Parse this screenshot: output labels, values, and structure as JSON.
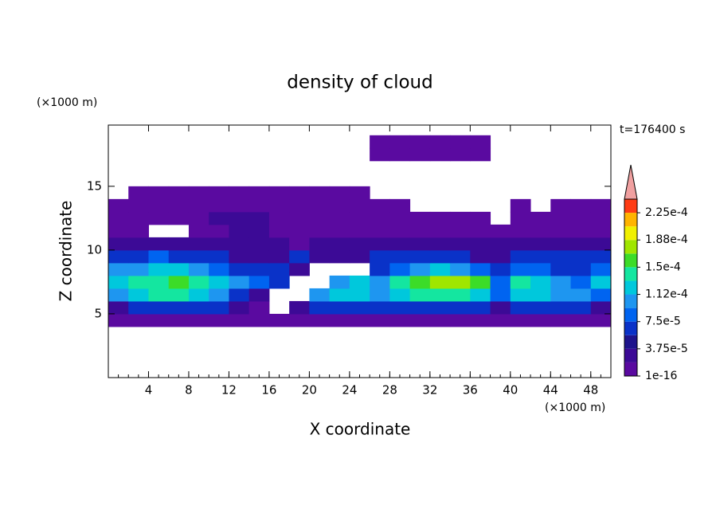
{
  "chart_data": {
    "type": "contour",
    "title": "density of cloud",
    "x_label": "X coordinate",
    "y_label": "Z coordinate",
    "x_unit_label": "(×1000 m)",
    "y_unit_label": "(×1000 m)",
    "time_label": "t=176400 s",
    "xlim": [
      0,
      50
    ],
    "ylim": [
      0,
      19.8
    ],
    "xticks": [
      4,
      8,
      12,
      16,
      20,
      24,
      28,
      32,
      36,
      40,
      44,
      48
    ],
    "yticks": [
      5,
      10,
      15
    ],
    "x": [
      1,
      3,
      5,
      7,
      9,
      11,
      13,
      15,
      17,
      19,
      21,
      23,
      25,
      27,
      29,
      31,
      33,
      35,
      37,
      39,
      41,
      43,
      45,
      47,
      49
    ],
    "z": [
      0.5,
      1.5,
      2.5,
      3.5,
      4.5,
      5.5,
      6.5,
      7.5,
      8.5,
      9.5,
      10.5,
      11.5,
      12.5,
      13.5,
      14.5,
      15.5,
      16.5,
      17.5,
      18.5,
      19.5
    ],
    "values": [
      [
        null,
        null,
        null,
        null,
        null,
        null,
        null,
        null,
        null,
        null,
        null,
        null,
        null,
        null,
        null,
        null,
        null,
        null,
        null,
        null,
        null,
        null,
        null,
        null,
        null
      ],
      [
        null,
        null,
        null,
        null,
        null,
        null,
        null,
        null,
        null,
        null,
        null,
        null,
        null,
        null,
        null,
        null,
        null,
        null,
        null,
        null,
        null,
        null,
        null,
        null,
        null
      ],
      [
        null,
        null,
        null,
        null,
        null,
        null,
        null,
        null,
        null,
        null,
        null,
        null,
        null,
        null,
        null,
        null,
        null,
        null,
        null,
        null,
        null,
        null,
        null,
        null,
        null
      ],
      [
        null,
        null,
        null,
        null,
        null,
        null,
        null,
        null,
        null,
        null,
        null,
        null,
        null,
        null,
        null,
        null,
        null,
        null,
        null,
        null,
        null,
        null,
        null,
        null,
        null
      ],
      [
        1e-05,
        1e-05,
        1e-05,
        1e-05,
        1e-05,
        1e-05,
        1e-05,
        1e-05,
        1e-05,
        1e-05,
        1e-05,
        1e-05,
        1e-05,
        1e-05,
        1e-05,
        1e-05,
        1e-05,
        1e-05,
        1e-05,
        1e-05,
        1e-05,
        1e-05,
        1e-05,
        1e-05,
        1e-05
      ],
      [
        3e-05,
        6e-05,
        6e-05,
        6e-05,
        6e-05,
        6e-05,
        3e-05,
        1e-05,
        null,
        3e-05,
        6e-05,
        6e-05,
        6e-05,
        6e-05,
        6e-05,
        6e-05,
        6e-05,
        6e-05,
        6e-05,
        3e-05,
        6e-05,
        6e-05,
        6e-05,
        6e-05,
        3e-05
      ],
      [
        0.000105,
        0.00012,
        0.00014,
        0.00014,
        0.00012,
        0.000105,
        6e-05,
        3e-05,
        null,
        null,
        0.000105,
        0.00012,
        0.00012,
        0.000105,
        0.00012,
        0.00014,
        0.00014,
        0.00014,
        0.00012,
        8.5e-05,
        0.00012,
        0.00012,
        0.000105,
        0.000105,
        8.5e-05
      ],
      [
        0.00012,
        0.00014,
        0.00014,
        0.00016,
        0.00014,
        0.00012,
        0.000105,
        8.5e-05,
        6e-05,
        null,
        null,
        0.000105,
        0.00012,
        0.000105,
        0.00014,
        0.00016,
        0.00018,
        0.00018,
        0.00016,
        8.5e-05,
        0.00014,
        0.00012,
        0.000105,
        8.5e-05,
        0.00012
      ],
      [
        0.000105,
        0.000105,
        0.00012,
        0.00012,
        0.000105,
        8.5e-05,
        6e-05,
        6e-05,
        6e-05,
        3e-05,
        null,
        null,
        null,
        6e-05,
        8.5e-05,
        0.000105,
        0.00012,
        0.000105,
        8.5e-05,
        6e-05,
        8.5e-05,
        8.5e-05,
        6e-05,
        6e-05,
        8.5e-05
      ],
      [
        6e-05,
        6e-05,
        8.5e-05,
        6e-05,
        6e-05,
        6e-05,
        3e-05,
        3e-05,
        3e-05,
        6e-05,
        3e-05,
        3e-05,
        3e-05,
        6e-05,
        6e-05,
        6e-05,
        6e-05,
        6e-05,
        3e-05,
        3e-05,
        6e-05,
        6e-05,
        6e-05,
        6e-05,
        6e-05
      ],
      [
        3e-05,
        3e-05,
        3e-05,
        3e-05,
        3e-05,
        3e-05,
        3e-05,
        3e-05,
        3e-05,
        1e-05,
        3e-05,
        3e-05,
        3e-05,
        3e-05,
        3e-05,
        3e-05,
        3e-05,
        3e-05,
        3e-05,
        3e-05,
        3e-05,
        3e-05,
        3e-05,
        3e-05,
        3e-05
      ],
      [
        1e-05,
        1e-05,
        null,
        null,
        1e-05,
        1e-05,
        3e-05,
        3e-05,
        1e-05,
        1e-05,
        1e-05,
        1e-05,
        1e-05,
        1e-05,
        1e-05,
        1e-05,
        1e-05,
        1e-05,
        1e-05,
        1e-05,
        1e-05,
        1e-05,
        1e-05,
        1e-05,
        1e-05
      ],
      [
        1e-05,
        1e-05,
        1e-05,
        1e-05,
        1e-05,
        3e-05,
        3e-05,
        3e-05,
        1e-05,
        1e-05,
        1e-05,
        1e-05,
        1e-05,
        1e-05,
        1e-05,
        1e-05,
        1e-05,
        1e-05,
        1e-05,
        null,
        1e-05,
        1e-05,
        1e-05,
        1e-05,
        1e-05
      ],
      [
        1e-05,
        1e-05,
        1e-05,
        1e-05,
        1e-05,
        1e-05,
        1e-05,
        1e-05,
        1e-05,
        1e-05,
        1e-05,
        1e-05,
        1e-05,
        1e-05,
        1e-05,
        null,
        null,
        null,
        null,
        null,
        1e-05,
        null,
        1e-05,
        1e-05,
        1e-05
      ],
      [
        null,
        1e-05,
        1e-05,
        1e-05,
        1e-05,
        1e-05,
        1e-05,
        1e-05,
        1e-05,
        1e-05,
        1e-05,
        1e-05,
        1e-05,
        null,
        null,
        null,
        null,
        null,
        null,
        null,
        null,
        null,
        null,
        null,
        null
      ],
      [
        null,
        null,
        null,
        null,
        null,
        null,
        null,
        null,
        null,
        null,
        null,
        null,
        null,
        null,
        null,
        null,
        null,
        null,
        null,
        null,
        null,
        null,
        null,
        null,
        null
      ],
      [
        null,
        null,
        null,
        null,
        null,
        null,
        null,
        null,
        null,
        null,
        null,
        null,
        null,
        null,
        null,
        null,
        null,
        null,
        null,
        null,
        null,
        null,
        null,
        null,
        null
      ],
      [
        null,
        null,
        null,
        null,
        null,
        null,
        null,
        null,
        null,
        null,
        null,
        null,
        null,
        1e-05,
        1e-05,
        1e-05,
        1e-05,
        1e-05,
        1e-05,
        null,
        null,
        null,
        null,
        null,
        null
      ],
      [
        null,
        null,
        null,
        null,
        null,
        null,
        null,
        null,
        null,
        null,
        null,
        null,
        null,
        1e-05,
        1e-05,
        1e-05,
        1e-05,
        1e-05,
        1e-05,
        null,
        null,
        null,
        null,
        null,
        null
      ],
      [
        null,
        null,
        null,
        null,
        null,
        null,
        null,
        null,
        null,
        null,
        null,
        null,
        null,
        null,
        null,
        null,
        null,
        null,
        null,
        null,
        null,
        null,
        null,
        null,
        null
      ]
    ],
    "levels": [
      1e-16,
      1.875e-05,
      3.75e-05,
      5.625e-05,
      7.5e-05,
      9.375e-05,
      0.0001125,
      0.00013125,
      0.00015,
      0.00016875,
      0.0001875,
      0.00020625,
      0.000225,
      0.00024375
    ],
    "colors": [
      "#5a0aa0",
      "#3c0a96",
      "#1e148c",
      "#0a32c8",
      "#0064f0",
      "#1e96f0",
      "#00c8dc",
      "#14e6a0",
      "#3cdc28",
      "#a0e600",
      "#f0f000",
      "#ffb400",
      "#ff3c14"
    ],
    "extend_color": "#f0a0a0",
    "colorbar_ticks": [
      {
        "value": 1e-16,
        "label": "1e-16"
      },
      {
        "value": 3.75e-05,
        "label": "3.75e-5"
      },
      {
        "value": 7.5e-05,
        "label": "7.5e-5"
      },
      {
        "value": 0.0001125,
        "label": "1.12e-4"
      },
      {
        "value": 0.00015,
        "label": "1.5e-4"
      },
      {
        "value": 0.0001875,
        "label": "1.88e-4"
      },
      {
        "value": 0.000225,
        "label": "2.25e-4"
      }
    ]
  }
}
